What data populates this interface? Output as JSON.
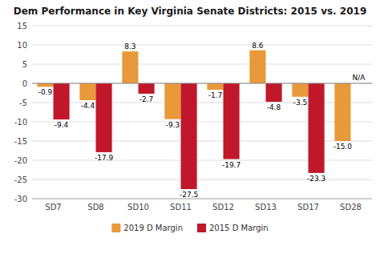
{
  "chart_data": {
    "type": "bar",
    "title": "Dem Performance in Key Virginia Senate Districts: 2015 vs. 2019",
    "categories": [
      "SD7",
      "SD8",
      "SD10",
      "SD11",
      "SD12",
      "SD13",
      "SD17",
      "SD28"
    ],
    "series": [
      {
        "name": "2019 D Margin",
        "color": "#E8993A",
        "values": [
          -0.9,
          -4.4,
          8.3,
          -9.3,
          -1.7,
          8.6,
          -3.5,
          -15.0
        ],
        "value_labels": [
          "-0.9",
          "-4.4",
          "8.3",
          "-9.3",
          "-1.7",
          "8.6",
          "-3.5",
          "-15.0"
        ]
      },
      {
        "name": "2015 D Margin",
        "color": "#C0182A",
        "values": [
          -9.4,
          -17.9,
          -2.7,
          -27.5,
          -19.7,
          -4.8,
          -23.3,
          null
        ],
        "value_labels": [
          "-9.4",
          "-17.9",
          "-2.7",
          "-27.5",
          "-19.7",
          "-4.8",
          "-23.3",
          "N/A"
        ]
      }
    ],
    "ylim": [
      -30,
      15
    ],
    "yticks": [
      -30,
      -25,
      -20,
      -15,
      -10,
      -5,
      0,
      5,
      10,
      15
    ],
    "grid": true,
    "legend": "bottom",
    "data_labels": true
  }
}
